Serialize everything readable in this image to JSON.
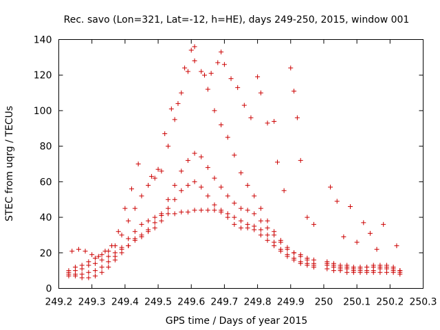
{
  "chart_data": {
    "type": "scatter",
    "title": "Rec. savo (Lon=321, Lat=-12, h=HE), days 249-250, 2015, window 001",
    "xlabel": "GPS time / Days of year 2015",
    "ylabel": "STEC from uqrg / TECUs",
    "xlim": [
      249.2,
      250.3
    ],
    "ylim": [
      0,
      140
    ],
    "x_ticks": [
      "249.2",
      "249.3",
      "249.4",
      "249.5",
      "249.6",
      "249.7",
      "249.8",
      "249.9",
      "250",
      "250.1",
      "250.2",
      "250.3"
    ],
    "y_ticks": [
      "0",
      "20",
      "40",
      "60",
      "80",
      "100",
      "120",
      "140"
    ],
    "grid": false,
    "legend": "none",
    "marker": "plus",
    "color": "#cc0000",
    "series": [
      {
        "points": [
          [
            249.23,
            8
          ],
          [
            249.25,
            8
          ],
          [
            249.27,
            8
          ],
          [
            249.29,
            9
          ],
          [
            249.31,
            10
          ],
          [
            249.33,
            12
          ],
          [
            249.35,
            15
          ],
          [
            249.37,
            18
          ],
          [
            249.39,
            23
          ],
          [
            249.41,
            28
          ],
          [
            249.43,
            32
          ],
          [
            249.45,
            36
          ],
          [
            249.47,
            38
          ],
          [
            249.49,
            40
          ],
          [
            249.51,
            41
          ],
          [
            249.53,
            42
          ],
          [
            249.55,
            42
          ],
          [
            249.57,
            43
          ],
          [
            249.59,
            43
          ],
          [
            249.61,
            44
          ],
          [
            249.63,
            44
          ],
          [
            249.65,
            44
          ],
          [
            249.67,
            44
          ],
          [
            249.69,
            43
          ],
          [
            249.71,
            40
          ],
          [
            249.73,
            36
          ],
          [
            249.75,
            34
          ],
          [
            249.77,
            34
          ],
          [
            249.79,
            33
          ],
          [
            249.81,
            30
          ],
          [
            249.83,
            27
          ],
          [
            249.85,
            24
          ],
          [
            249.87,
            21
          ],
          [
            249.89,
            18
          ],
          [
            249.91,
            16
          ],
          [
            249.93,
            14
          ],
          [
            249.95,
            13
          ],
          [
            249.97,
            12
          ],
          [
            250.01,
            11
          ],
          [
            250.03,
            10
          ],
          [
            250.05,
            10
          ],
          [
            250.07,
            9
          ],
          [
            250.09,
            9
          ],
          [
            250.11,
            9
          ],
          [
            250.13,
            9
          ],
          [
            250.15,
            9
          ],
          [
            250.17,
            9
          ],
          [
            250.19,
            9
          ],
          [
            250.21,
            9
          ],
          [
            250.23,
            8
          ]
        ]
      },
      {
        "points": [
          [
            249.23,
            7
          ],
          [
            249.25,
            7
          ],
          [
            249.27,
            6
          ],
          [
            249.29,
            6
          ],
          [
            249.31,
            7
          ],
          [
            249.33,
            9
          ],
          [
            249.35,
            12
          ],
          [
            249.37,
            16
          ],
          [
            249.39,
            20
          ],
          [
            249.41,
            24
          ],
          [
            249.43,
            28
          ],
          [
            249.45,
            30
          ],
          [
            249.47,
            32
          ],
          [
            249.49,
            34
          ],
          [
            249.51,
            38
          ],
          [
            249.53,
            45
          ],
          [
            249.55,
            50
          ],
          [
            249.57,
            55
          ],
          [
            249.59,
            58
          ],
          [
            249.61,
            60
          ],
          [
            249.63,
            57
          ],
          [
            249.65,
            52
          ],
          [
            249.67,
            47
          ],
          [
            249.69,
            44
          ],
          [
            249.71,
            42
          ],
          [
            249.73,
            40
          ],
          [
            249.75,
            38
          ],
          [
            249.77,
            36
          ],
          [
            249.79,
            35
          ],
          [
            249.81,
            33
          ],
          [
            249.83,
            30
          ],
          [
            249.85,
            26
          ],
          [
            249.87,
            22
          ],
          [
            249.89,
            19
          ],
          [
            249.91,
            17
          ],
          [
            249.93,
            15
          ],
          [
            249.95,
            14
          ],
          [
            249.97,
            13
          ],
          [
            250.01,
            13
          ],
          [
            250.03,
            12
          ],
          [
            250.05,
            11
          ],
          [
            250.07,
            11
          ],
          [
            250.09,
            10
          ],
          [
            250.11,
            10
          ],
          [
            250.13,
            10
          ],
          [
            250.15,
            10
          ],
          [
            250.17,
            11
          ],
          [
            250.19,
            11
          ],
          [
            250.21,
            10
          ],
          [
            250.23,
            9
          ]
        ]
      },
      {
        "points": [
          [
            249.23,
            9
          ],
          [
            249.25,
            10
          ],
          [
            249.27,
            11
          ],
          [
            249.29,
            13
          ],
          [
            249.31,
            14
          ],
          [
            249.33,
            16
          ],
          [
            249.35,
            18
          ],
          [
            249.37,
            20
          ],
          [
            249.39,
            22
          ],
          [
            249.41,
            24
          ],
          [
            249.43,
            27
          ],
          [
            249.45,
            29
          ],
          [
            249.47,
            33
          ],
          [
            249.49,
            37
          ],
          [
            249.51,
            42
          ],
          [
            249.53,
            50
          ],
          [
            249.55,
            58
          ],
          [
            249.57,
            66
          ],
          [
            249.59,
            72
          ],
          [
            249.61,
            76
          ],
          [
            249.63,
            74
          ],
          [
            249.65,
            68
          ],
          [
            249.67,
            62
          ],
          [
            249.69,
            57
          ],
          [
            249.71,
            52
          ],
          [
            249.73,
            48
          ],
          [
            249.75,
            45
          ],
          [
            249.77,
            44
          ],
          [
            249.79,
            42
          ],
          [
            249.81,
            38
          ],
          [
            249.83,
            34
          ],
          [
            249.85,
            30
          ],
          [
            249.87,
            26
          ],
          [
            249.89,
            22
          ],
          [
            249.91,
            20
          ],
          [
            249.93,
            18
          ],
          [
            249.95,
            16
          ],
          [
            249.97,
            14
          ],
          [
            250.01,
            14
          ],
          [
            250.03,
            13
          ],
          [
            250.05,
            12
          ],
          [
            250.07,
            12
          ],
          [
            250.09,
            11
          ],
          [
            250.11,
            11
          ],
          [
            250.13,
            12
          ],
          [
            250.15,
            12
          ],
          [
            250.17,
            12
          ],
          [
            250.19,
            13
          ],
          [
            250.21,
            12
          ],
          [
            250.23,
            10
          ]
        ]
      },
      {
        "points": [
          [
            249.23,
            10
          ],
          [
            249.25,
            12
          ],
          [
            249.27,
            13
          ],
          [
            249.29,
            15
          ],
          [
            249.31,
            17
          ],
          [
            249.33,
            19
          ],
          [
            249.35,
            21
          ],
          [
            249.37,
            24
          ],
          [
            249.39,
            30
          ],
          [
            249.41,
            38
          ],
          [
            249.43,
            45
          ],
          [
            249.45,
            52
          ],
          [
            249.47,
            58
          ],
          [
            249.49,
            62
          ],
          [
            249.51,
            66
          ],
          [
            249.53,
            80
          ],
          [
            249.55,
            95
          ],
          [
            249.57,
            110
          ],
          [
            249.59,
            122
          ],
          [
            249.61,
            128
          ],
          [
            249.63,
            122
          ],
          [
            249.65,
            112
          ],
          [
            249.67,
            100
          ],
          [
            249.69,
            92
          ],
          [
            249.71,
            85
          ],
          [
            249.73,
            75
          ],
          [
            249.75,
            65
          ],
          [
            249.77,
            58
          ],
          [
            249.79,
            52
          ],
          [
            249.81,
            45
          ],
          [
            249.83,
            38
          ],
          [
            249.85,
            32
          ],
          [
            249.87,
            27
          ],
          [
            249.89,
            23
          ],
          [
            249.91,
            20
          ],
          [
            249.93,
            19
          ],
          [
            249.95,
            17
          ],
          [
            249.97,
            16
          ],
          [
            250.01,
            15
          ],
          [
            250.03,
            14
          ],
          [
            250.05,
            13
          ],
          [
            250.07,
            13
          ],
          [
            250.09,
            12
          ],
          [
            250.11,
            12
          ],
          [
            250.13,
            12
          ],
          [
            250.15,
            13
          ],
          [
            250.17,
            13
          ],
          [
            250.19,
            12
          ],
          [
            250.21,
            11
          ],
          [
            250.23,
            10
          ]
        ]
      },
      {
        "points": [
          [
            249.24,
            21
          ],
          [
            249.26,
            22
          ],
          [
            249.28,
            21
          ],
          [
            249.3,
            19
          ],
          [
            249.32,
            18
          ],
          [
            249.34,
            21
          ],
          [
            249.36,
            24
          ],
          [
            249.38,
            32
          ],
          [
            249.4,
            45
          ],
          [
            249.42,
            56
          ],
          [
            249.44,
            70
          ],
          [
            249.48,
            63
          ],
          [
            249.5,
            67
          ],
          [
            249.52,
            87
          ],
          [
            249.54,
            101
          ],
          [
            249.56,
            104
          ],
          [
            249.58,
            124
          ],
          [
            249.6,
            134
          ],
          [
            249.61,
            136
          ],
          [
            249.64,
            120
          ],
          [
            249.66,
            121
          ],
          [
            249.68,
            127
          ],
          [
            249.69,
            133
          ],
          [
            249.7,
            126
          ],
          [
            249.72,
            118
          ],
          [
            249.74,
            113
          ],
          [
            249.76,
            103
          ],
          [
            249.78,
            96
          ],
          [
            249.8,
            119
          ],
          [
            249.81,
            110
          ],
          [
            249.83,
            93
          ],
          [
            249.85,
            94
          ],
          [
            249.86,
            71
          ],
          [
            249.88,
            55
          ],
          [
            249.9,
            124
          ],
          [
            249.91,
            111
          ],
          [
            249.92,
            96
          ],
          [
            249.93,
            72
          ],
          [
            249.95,
            40
          ],
          [
            249.97,
            36
          ],
          [
            250.02,
            57
          ],
          [
            250.04,
            49
          ],
          [
            250.06,
            29
          ],
          [
            250.08,
            46
          ],
          [
            250.1,
            26
          ],
          [
            250.12,
            37
          ],
          [
            250.14,
            31
          ],
          [
            250.16,
            22
          ],
          [
            250.18,
            36
          ],
          [
            250.22,
            24
          ]
        ]
      }
    ]
  }
}
